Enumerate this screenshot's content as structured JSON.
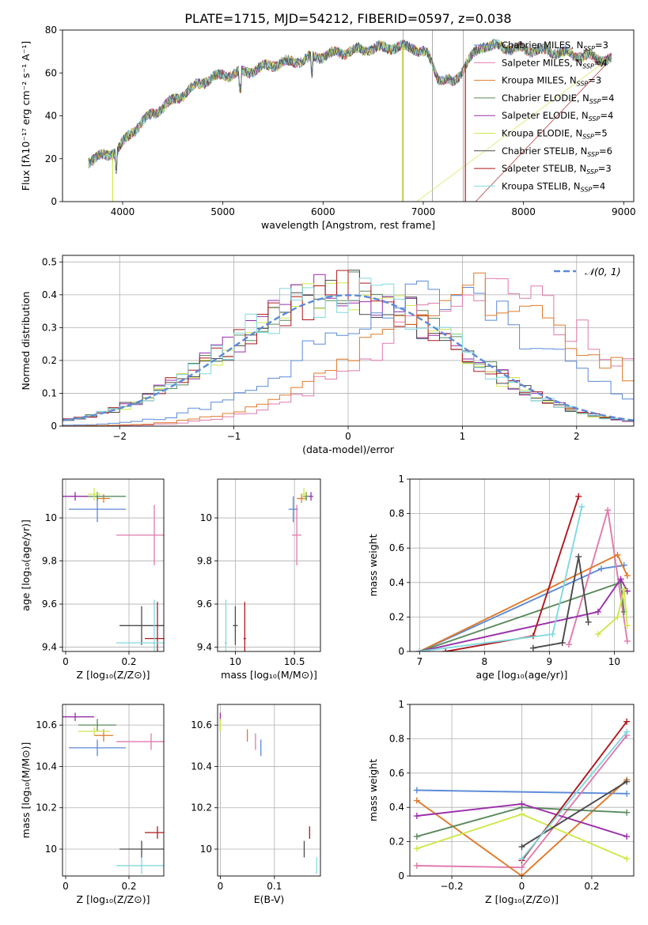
{
  "title": "PLATE=1715, MJD=54212, FIBERID=0597, z=0.038",
  "models": [
    {
      "name": "Chabrier MILES",
      "nssp": "3",
      "color": "#5b8ad8"
    },
    {
      "name": "Salpeter MILES",
      "nssp": "4",
      "color": "#e07aad"
    },
    {
      "name": "Kroupa MILES",
      "nssp": "3",
      "color": "#e07a2a"
    },
    {
      "name": "Chabrier ELODIE",
      "nssp": "4",
      "color": "#5a8a5e"
    },
    {
      "name": "Salpeter ELODIE",
      "nssp": "4",
      "color": "#9a2eaa"
    },
    {
      "name": "Kroupa ELODIE",
      "nssp": "5",
      "color": "#cfe84a"
    },
    {
      "name": "Chabrier STELIB",
      "nssp": "6",
      "color": "#4a4a4a"
    },
    {
      "name": "Salpeter STELIB",
      "nssp": "3",
      "color": "#b0181e"
    },
    {
      "name": "Kroupa STELIB",
      "nssp": "4",
      "color": "#80d8e0"
    }
  ],
  "chart_data": [
    {
      "type": "line",
      "panel": "spectrum",
      "xlabel": "wavelength [Angstrom, rest frame]",
      "ylabel": "Flux [fλ10⁻¹⁷ erg cm⁻² s⁻¹ A⁻¹]",
      "xlim": [
        3400,
        9100
      ],
      "ylim": [
        0,
        80
      ],
      "xticks": [
        4000,
        5000,
        6000,
        7000,
        8000,
        9000
      ],
      "yticks": [
        0,
        20,
        40,
        60,
        80
      ],
      "continuum": {
        "x": [
          3650,
          3800,
          3950,
          4100,
          4300,
          4500,
          4800,
          5000,
          5200,
          5500,
          5800,
          6100,
          6400,
          6700,
          6900,
          7050,
          7150,
          7300,
          7450,
          7600,
          7800,
          8000,
          8300,
          8600,
          8850
        ],
        "y": [
          19,
          21,
          24,
          33,
          41,
          47,
          56,
          59,
          60,
          64,
          66,
          69,
          71,
          72,
          72,
          68,
          58,
          55,
          66,
          73,
          72,
          71,
          70,
          68,
          66
        ]
      },
      "dropouts": [
        {
          "x": 6790,
          "model": "Kroupa ELODIE"
        },
        {
          "x": 7420,
          "model": "Salpeter STELIB"
        },
        {
          "x": 3900,
          "model": "Kroupa ELODIE"
        }
      ],
      "telluric_lines": [
        6800,
        7090,
        7400
      ]
    },
    {
      "type": "step",
      "panel": "residuals",
      "xlabel": "(data-model)/error",
      "ylabel": "Normed distribution",
      "xlim": [
        -2.5,
        2.5
      ],
      "ylim": [
        0,
        0.52
      ],
      "xticks": [
        -2,
        -1,
        0,
        1,
        2
      ],
      "yticks": [
        0.0,
        0.1,
        0.2,
        0.3,
        0.4,
        0.5
      ],
      "reference": {
        "label": "𝒩(0, 1)",
        "mean": 0,
        "sigma": 1
      },
      "bin_width": 0.1,
      "bins_start": -2.5,
      "groups": [
        {
          "models": [
            "Chabrier ELODIE",
            "Salpeter ELODIE",
            "Kroupa ELODIE",
            "Chabrier STELIB",
            "Salpeter STELIB",
            "Kroupa STELIB"
          ],
          "mean": -0.05,
          "sigma": 0.98
        },
        {
          "models": [
            "Chabrier MILES"
          ],
          "mean": 0.72,
          "sigma": 1.0
        },
        {
          "models": [
            "Salpeter MILES"
          ],
          "mean": 1.25,
          "sigma": 1.0
        },
        {
          "models": [
            "Kroupa MILES"
          ],
          "mean": 1.1,
          "sigma": 1.0
        }
      ]
    },
    {
      "type": "errorbar",
      "panel": "age-vs-Z",
      "xlabel": "Z [log₁₀(Z/Z⊙)]",
      "ylabel": "age  [log₁₀(age/yr)]",
      "xlim": [
        -0.01,
        0.31
      ],
      "ylim": [
        9.38,
        10.18
      ],
      "xticks": [
        0.0,
        0.2
      ],
      "yticks": [
        9.4,
        9.6,
        9.8,
        10.0
      ],
      "points": [
        {
          "model": "Chabrier MILES",
          "x": 0.1,
          "xerr": 0.09,
          "y": 10.04,
          "yerr": 0.06
        },
        {
          "model": "Salpeter MILES",
          "x": 0.28,
          "xerr": 0.12,
          "y": 9.92,
          "yerr": 0.14
        },
        {
          "model": "Kroupa MILES",
          "x": 0.12,
          "xerr": 0.02,
          "y": 10.09,
          "yerr": 0.02
        },
        {
          "model": "Chabrier ELODIE",
          "x": 0.1,
          "xerr": 0.09,
          "y": 10.1,
          "yerr": 0.02
        },
        {
          "model": "Salpeter ELODIE",
          "x": 0.03,
          "xerr": 0.04,
          "y": 10.1,
          "yerr": 0.02
        },
        {
          "model": "Kroupa ELODIE",
          "x": 0.09,
          "xerr": 0.02,
          "y": 10.11,
          "yerr": 0.03
        },
        {
          "model": "Chabrier STELIB",
          "x": 0.24,
          "xerr": 0.07,
          "y": 9.5,
          "yerr": 0.09
        },
        {
          "model": "Salpeter STELIB",
          "x": 0.29,
          "xerr": 0.04,
          "y": 9.44,
          "yerr": 0.17
        },
        {
          "model": "Kroupa STELIB",
          "x": 0.28,
          "xerr": 0.12,
          "y": 9.42,
          "yerr": 0.2
        }
      ]
    },
    {
      "type": "errorbar",
      "panel": "age-vs-mass",
      "xlabel": "mass [log₁₀(M/M⊙)]",
      "xlim": [
        9.85,
        10.72
      ],
      "ylim": [
        9.38,
        10.18
      ],
      "xticks": [
        10.0,
        10.5
      ],
      "yticks": [
        9.4,
        9.6,
        9.8,
        10.0
      ],
      "points": [
        {
          "model": "Chabrier MILES",
          "x": 10.49,
          "xerr": 0.04,
          "y": 10.04,
          "yerr": 0.06
        },
        {
          "model": "Salpeter MILES",
          "x": 10.52,
          "xerr": 0.04,
          "y": 9.92,
          "yerr": 0.14
        },
        {
          "model": "Kroupa MILES",
          "x": 10.56,
          "xerr": 0.04,
          "y": 10.09,
          "yerr": 0.02
        },
        {
          "model": "Chabrier ELODIE",
          "x": 10.6,
          "xerr": 0.03,
          "y": 10.1,
          "yerr": 0.02
        },
        {
          "model": "Salpeter ELODIE",
          "x": 10.64,
          "xerr": 0.02,
          "y": 10.1,
          "yerr": 0.02
        },
        {
          "model": "Kroupa ELODIE",
          "x": 10.58,
          "xerr": 0.03,
          "y": 10.11,
          "yerr": 0.03
        },
        {
          "model": "Chabrier STELIB",
          "x": 10.0,
          "xerr": 0.02,
          "y": 9.5,
          "yerr": 0.09
        },
        {
          "model": "Salpeter STELIB",
          "x": 10.08,
          "xerr": 0.01,
          "y": 9.44,
          "yerr": 0.17
        },
        {
          "model": "Kroupa STELIB",
          "x": 9.92,
          "xerr": 0.01,
          "y": 9.42,
          "yerr": 0.2
        }
      ]
    },
    {
      "type": "line",
      "panel": "mass-weight-vs-age",
      "xlabel": "age  [log₁₀(age/yr)]",
      "ylabel": "mass weight",
      "xlim": [
        6.85,
        10.3
      ],
      "ylim": [
        0,
        1.0
      ],
      "xticks": [
        7,
        8,
        9,
        10
      ],
      "yticks": [
        0.0,
        0.2,
        0.4,
        0.6,
        0.8,
        1.0
      ],
      "series": [
        {
          "model": "Chabrier MILES",
          "x": [
            7.0,
            9.8,
            10.15
          ],
          "y": [
            0.0,
            0.48,
            0.5
          ]
        },
        {
          "model": "Salpeter MILES",
          "x": [
            9.3,
            9.9,
            10.2
          ],
          "y": [
            0.04,
            0.82,
            0.06
          ]
        },
        {
          "model": "Kroupa MILES",
          "x": [
            7.0,
            10.05,
            10.2
          ],
          "y": [
            0.0,
            0.56,
            0.44
          ]
        },
        {
          "model": "Chabrier ELODIE",
          "x": [
            7.0,
            10.1,
            10.15
          ],
          "y": [
            0.0,
            0.4,
            0.23
          ]
        },
        {
          "model": "Salpeter ELODIE",
          "x": [
            7.0,
            9.75,
            10.1,
            10.2
          ],
          "y": [
            0.0,
            0.23,
            0.42,
            0.35
          ]
        },
        {
          "model": "Kroupa ELODIE",
          "x": [
            9.75,
            10.05,
            10.15,
            10.2
          ],
          "y": [
            0.1,
            0.2,
            0.36,
            0.15
          ]
        },
        {
          "model": "Chabrier STELIB",
          "x": [
            8.75,
            9.2,
            9.45,
            9.6
          ],
          "y": [
            0.02,
            0.05,
            0.55,
            0.17
          ]
        },
        {
          "model": "Salpeter STELIB",
          "x": [
            7.4,
            8.75,
            9.45
          ],
          "y": [
            0.0,
            0.09,
            0.9
          ]
        },
        {
          "model": "Kroupa STELIB",
          "x": [
            7.0,
            9.05,
            9.5
          ],
          "y": [
            0.0,
            0.1,
            0.84
          ]
        }
      ]
    },
    {
      "type": "errorbar",
      "panel": "mass-vs-Z",
      "xlabel": "Z [log₁₀(Z/Z⊙)]",
      "ylabel": "mass [log₁₀(M/M⊙)]",
      "xlim": [
        -0.01,
        0.31
      ],
      "ylim": [
        9.87,
        10.7
      ],
      "xticks": [
        0.0,
        0.2
      ],
      "yticks": [
        10.0,
        10.2,
        10.4,
        10.6
      ],
      "points": [
        {
          "model": "Chabrier MILES",
          "x": 0.1,
          "xerr": 0.09,
          "y": 10.49,
          "yerr": 0.04
        },
        {
          "model": "Salpeter MILES",
          "x": 0.27,
          "xerr": 0.11,
          "y": 10.52,
          "yerr": 0.04
        },
        {
          "model": "Kroupa MILES",
          "x": 0.12,
          "xerr": 0.03,
          "y": 10.55,
          "yerr": 0.03
        },
        {
          "model": "Chabrier ELODIE",
          "x": 0.1,
          "xerr": 0.06,
          "y": 10.6,
          "yerr": 0.03
        },
        {
          "model": "Salpeter ELODIE",
          "x": 0.03,
          "xerr": 0.06,
          "y": 10.64,
          "yerr": 0.02
        },
        {
          "model": "Kroupa ELODIE",
          "x": 0.09,
          "xerr": 0.05,
          "y": 10.57,
          "yerr": 0.02
        },
        {
          "model": "Chabrier STELIB",
          "x": 0.24,
          "xerr": 0.07,
          "y": 10.0,
          "yerr": 0.04
        },
        {
          "model": "Salpeter STELIB",
          "x": 0.29,
          "xerr": 0.04,
          "y": 10.08,
          "yerr": 0.03
        },
        {
          "model": "Kroupa STELIB",
          "x": 0.24,
          "xerr": 0.08,
          "y": 9.92,
          "yerr": 0.04
        }
      ]
    },
    {
      "type": "errorbar",
      "panel": "mass-vs-EBV",
      "xlabel": "E(B-V)",
      "xlim": [
        -0.005,
        0.185
      ],
      "ylim": [
        9.87,
        10.7
      ],
      "xticks": [
        0.0,
        0.1
      ],
      "yticks": [
        10.0,
        10.2,
        10.4,
        10.6
      ],
      "points": [
        {
          "model": "Chabrier MILES",
          "x": 0.075,
          "xerr": 0.0,
          "y": 10.49,
          "yerr": 0.04
        },
        {
          "model": "Salpeter MILES",
          "x": 0.065,
          "xerr": 0.0,
          "y": 10.52,
          "yerr": 0.04
        },
        {
          "model": "Kroupa MILES",
          "x": 0.05,
          "xerr": 0.0,
          "y": 10.55,
          "yerr": 0.03
        },
        {
          "model": "Chabrier ELODIE",
          "x": 0.0,
          "xerr": 0.0,
          "y": 10.6,
          "yerr": 0.03
        },
        {
          "model": "Salpeter ELODIE",
          "x": 0.0,
          "xerr": 0.0,
          "y": 10.64,
          "yerr": 0.02
        },
        {
          "model": "Kroupa ELODIE",
          "x": 0.0,
          "xerr": 0.0,
          "y": 10.6,
          "yerr": 0.03
        },
        {
          "model": "Chabrier STELIB",
          "x": 0.155,
          "xerr": 0.0,
          "y": 10.0,
          "yerr": 0.04
        },
        {
          "model": "Salpeter STELIB",
          "x": 0.165,
          "xerr": 0.0,
          "y": 10.08,
          "yerr": 0.03
        },
        {
          "model": "Kroupa STELIB",
          "x": 0.178,
          "xerr": 0.0,
          "y": 9.92,
          "yerr": 0.04
        }
      ]
    },
    {
      "type": "line",
      "panel": "mass-weight-vs-Z",
      "xlabel": "Z [log₁₀(Z/Z⊙)]",
      "ylabel": "mass weight",
      "xlim": [
        -0.32,
        0.32
      ],
      "ylim": [
        0,
        1.0
      ],
      "xticks": [
        -0.2,
        0.0,
        0.2
      ],
      "yticks": [
        0.0,
        0.2,
        0.4,
        0.6,
        0.8,
        1.0
      ],
      "series": [
        {
          "model": "Chabrier MILES",
          "x": [
            -0.3,
            0.3
          ],
          "y": [
            0.5,
            0.48
          ]
        },
        {
          "model": "Salpeter MILES",
          "x": [
            -0.3,
            0.0,
            0.3
          ],
          "y": [
            0.06,
            0.05,
            0.82
          ]
        },
        {
          "model": "Kroupa MILES",
          "x": [
            -0.3,
            0.0,
            0.3
          ],
          "y": [
            0.44,
            0.0,
            0.56
          ]
        },
        {
          "model": "Chabrier ELODIE",
          "x": [
            -0.3,
            0.0,
            0.3
          ],
          "y": [
            0.23,
            0.4,
            0.37
          ]
        },
        {
          "model": "Salpeter ELODIE",
          "x": [
            -0.3,
            0.0,
            0.3
          ],
          "y": [
            0.35,
            0.42,
            0.23
          ]
        },
        {
          "model": "Kroupa ELODIE",
          "x": [
            -0.3,
            0.0,
            0.3
          ],
          "y": [
            0.16,
            0.36,
            0.1
          ]
        },
        {
          "model": "Chabrier STELIB",
          "x": [
            0.0,
            0.3
          ],
          "y": [
            0.17,
            0.55
          ]
        },
        {
          "model": "Salpeter STELIB",
          "x": [
            0.0,
            0.3
          ],
          "y": [
            0.09,
            0.9
          ]
        },
        {
          "model": "Kroupa STELIB",
          "x": [
            0.0,
            0.3
          ],
          "y": [
            0.1,
            0.84
          ]
        }
      ]
    }
  ]
}
